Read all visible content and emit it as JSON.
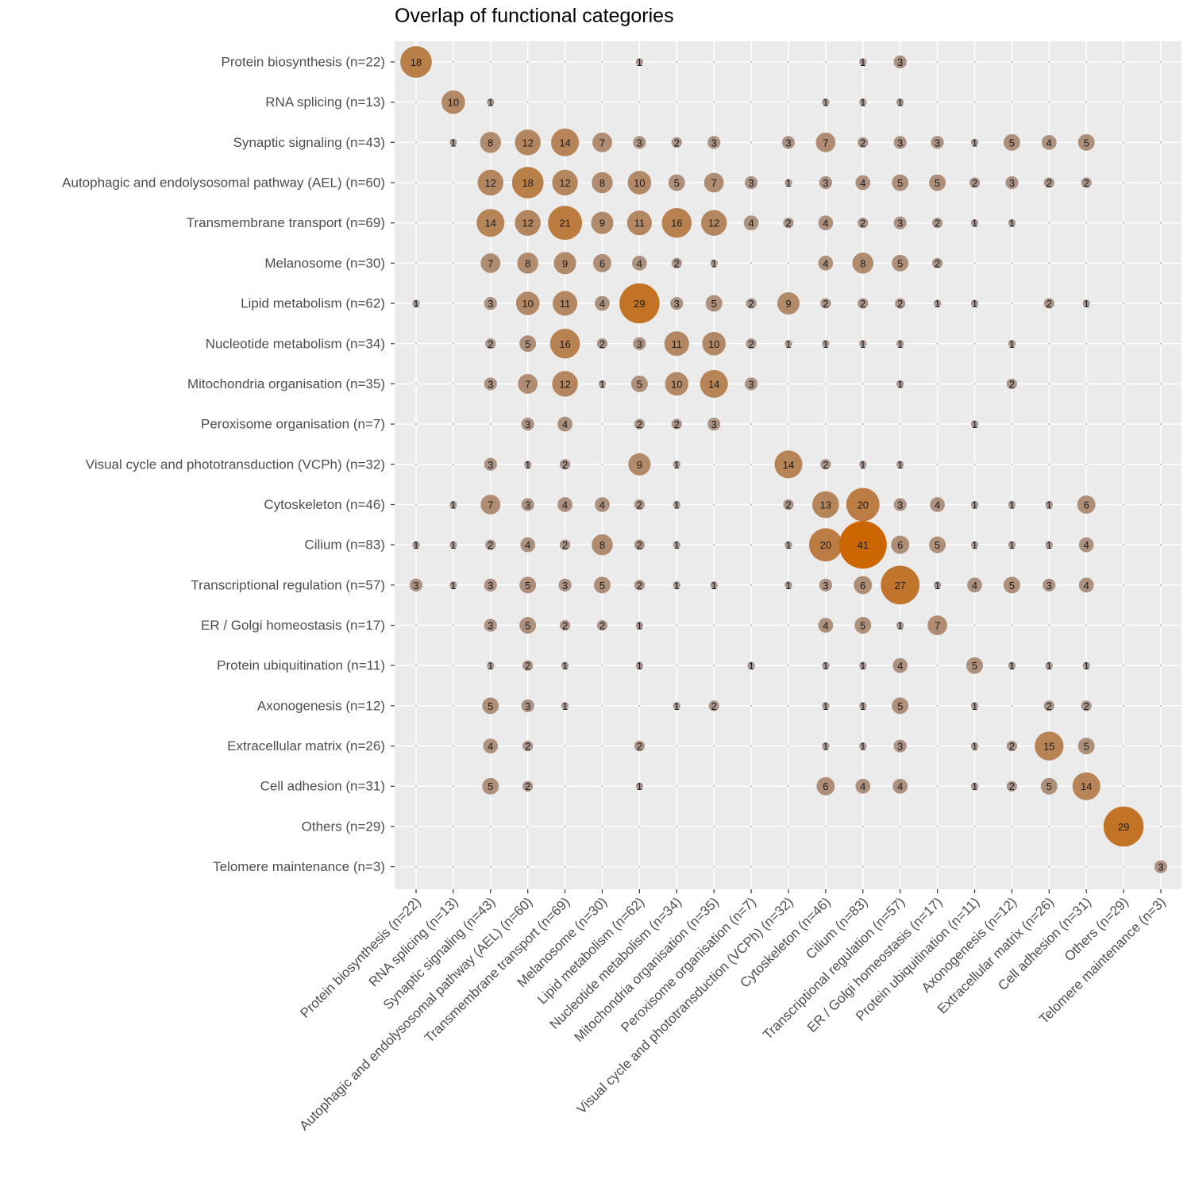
{
  "chart_data": {
    "type": "bubble-matrix",
    "title": "Overlap of functional categories",
    "xlabel": "",
    "ylabel": "",
    "grid": true,
    "legend": "none",
    "categories": [
      "Protein biosynthesis (n=22)",
      "RNA splicing (n=13)",
      "Synaptic signaling (n=43)",
      "Autophagic and endolysosomal pathway (AEL) (n=60)",
      "Transmembrane transport (n=69)",
      "Melanosome (n=30)",
      "Lipid metabolism (n=62)",
      "Nucleotide metabolism (n=34)",
      "Mitochondria organisation (n=35)",
      "Peroxisome organisation (n=7)",
      "Visual cycle and phototransduction (VCPh) (n=32)",
      "Cytoskeleton (n=46)",
      "Cilium (n=83)",
      "Transcriptional regulation (n=57)",
      "ER / Golgi homeostasis (n=17)",
      "Protein ubiquitination (n=11)",
      "Axonogenesis (n=12)",
      "Extracellular matrix (n=26)",
      "Cell adhesion (n=31)",
      "Others (n=29)",
      "Telomere maintenance (n=3)"
    ],
    "matrix": [
      [
        18,
        0,
        0,
        0,
        0,
        0,
        1,
        0,
        0,
        0,
        0,
        0,
        1,
        3,
        0,
        0,
        0,
        0,
        0,
        0,
        0
      ],
      [
        0,
        10,
        1,
        0,
        0,
        0,
        0,
        0,
        0,
        0,
        0,
        1,
        1,
        1,
        0,
        0,
        0,
        0,
        0,
        0,
        0
      ],
      [
        0,
        1,
        8,
        12,
        14,
        7,
        3,
        2,
        3,
        0,
        3,
        7,
        2,
        3,
        3,
        1,
        5,
        4,
        5,
        0,
        0
      ],
      [
        0,
        0,
        12,
        18,
        12,
        8,
        10,
        5,
        7,
        3,
        1,
        3,
        4,
        5,
        5,
        2,
        3,
        2,
        2,
        0,
        0
      ],
      [
        0,
        0,
        14,
        12,
        21,
        9,
        11,
        16,
        12,
        4,
        2,
        4,
        2,
        3,
        2,
        1,
        1,
        0,
        0,
        0,
        0
      ],
      [
        0,
        0,
        7,
        8,
        9,
        6,
        4,
        2,
        1,
        0,
        0,
        4,
        8,
        5,
        2,
        0,
        0,
        0,
        0,
        0,
        0
      ],
      [
        1,
        0,
        3,
        10,
        11,
        4,
        29,
        3,
        5,
        2,
        9,
        2,
        2,
        2,
        1,
        1,
        0,
        2,
        1,
        0,
        0
      ],
      [
        0,
        0,
        2,
        5,
        16,
        2,
        3,
        11,
        10,
        2,
        1,
        1,
        1,
        1,
        0,
        0,
        1,
        0,
        0,
        0,
        0
      ],
      [
        0,
        0,
        3,
        7,
        12,
        1,
        5,
        10,
        14,
        3,
        0,
        0,
        0,
        1,
        0,
        0,
        2,
        0,
        0,
        0,
        0
      ],
      [
        0,
        0,
        0,
        3,
        4,
        0,
        2,
        2,
        3,
        0,
        0,
        0,
        0,
        0,
        0,
        1,
        0,
        0,
        0,
        0,
        0
      ],
      [
        0,
        0,
        3,
        1,
        2,
        0,
        9,
        1,
        0,
        0,
        14,
        2,
        1,
        1,
        0,
        0,
        0,
        0,
        0,
        0,
        0
      ],
      [
        0,
        1,
        7,
        3,
        4,
        4,
        2,
        1,
        0,
        0,
        2,
        13,
        20,
        3,
        4,
        1,
        1,
        1,
        6,
        0,
        0
      ],
      [
        1,
        1,
        2,
        4,
        2,
        8,
        2,
        1,
        0,
        0,
        1,
        20,
        41,
        6,
        5,
        1,
        1,
        1,
        4,
        0,
        0
      ],
      [
        3,
        1,
        3,
        5,
        3,
        5,
        2,
        1,
        1,
        0,
        1,
        3,
        6,
        27,
        1,
        4,
        5,
        3,
        4,
        0,
        0
      ],
      [
        0,
        0,
        3,
        5,
        2,
        2,
        1,
        0,
        0,
        0,
        0,
        4,
        5,
        1,
        7,
        0,
        0,
        0,
        0,
        0,
        0
      ],
      [
        0,
        0,
        1,
        2,
        1,
        0,
        1,
        0,
        0,
        1,
        0,
        1,
        1,
        4,
        0,
        5,
        1,
        1,
        1,
        0,
        0
      ],
      [
        0,
        0,
        5,
        3,
        1,
        0,
        0,
        1,
        2,
        0,
        0,
        1,
        1,
        5,
        0,
        1,
        0,
        2,
        2,
        0,
        0
      ],
      [
        0,
        0,
        4,
        2,
        0,
        0,
        2,
        0,
        0,
        0,
        0,
        1,
        1,
        3,
        0,
        1,
        2,
        15,
        5,
        0,
        0
      ],
      [
        0,
        0,
        5,
        2,
        0,
        0,
        1,
        0,
        0,
        0,
        0,
        6,
        4,
        4,
        0,
        1,
        2,
        5,
        14,
        0,
        0
      ],
      [
        0,
        0,
        0,
        0,
        0,
        0,
        0,
        0,
        0,
        0,
        0,
        0,
        0,
        0,
        0,
        0,
        0,
        0,
        0,
        29,
        0
      ],
      [
        0,
        0,
        0,
        0,
        0,
        0,
        0,
        0,
        0,
        0,
        0,
        0,
        0,
        0,
        0,
        0,
        0,
        0,
        0,
        0,
        3
      ]
    ],
    "colors": {
      "panel_background": "#ebebeb",
      "grid_line": "#ffffff",
      "low": "#a8968e",
      "high": "#cc6600",
      "axis_text": "#4d4d4d"
    }
  }
}
